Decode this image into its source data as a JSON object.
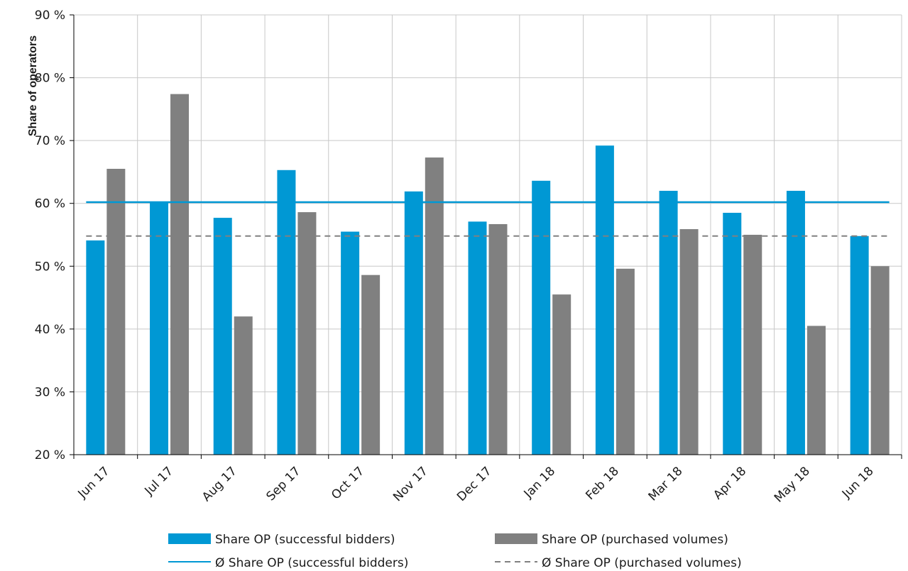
{
  "chart_data": {
    "type": "bar",
    "title": "",
    "ylabel": "Share of operators",
    "xlabel": "",
    "ylim": [
      20,
      90
    ],
    "y_ticks": [
      20,
      30,
      40,
      50,
      60,
      70,
      80,
      90
    ],
    "y_tick_suffix": " %",
    "grid": true,
    "legend_position": "bottom",
    "categories": [
      "Jun 17",
      "Jul 17",
      "Aug 17",
      "Sep 17",
      "Oct 17",
      "Nov 17",
      "Dec 17",
      "Jan 18",
      "Feb 18",
      "Mar 18",
      "Apr 18",
      "May 18",
      "Jun 18"
    ],
    "series": [
      {
        "name": "Share OP (successful bidders)",
        "kind": "bar",
        "color": "#0098d4",
        "values": [
          54.1,
          60.2,
          57.7,
          65.3,
          55.5,
          61.9,
          57.1,
          63.6,
          69.2,
          62.0,
          58.5,
          62.0,
          54.8
        ]
      },
      {
        "name": "Share OP (purchased volumes)",
        "kind": "bar",
        "color": "#808080",
        "values": [
          65.5,
          77.4,
          42.0,
          58.6,
          48.6,
          67.3,
          56.7,
          45.5,
          49.6,
          55.9,
          55.0,
          40.5,
          50.0
        ]
      }
    ],
    "reference_lines": [
      {
        "name": "Ø Share OP (successful bidders)",
        "value": 60.2,
        "color": "#0098d4",
        "dashed": false
      },
      {
        "name": "Ø Share OP (purchased volumes)",
        "value": 54.8,
        "color": "#808080",
        "dashed": true
      }
    ]
  }
}
